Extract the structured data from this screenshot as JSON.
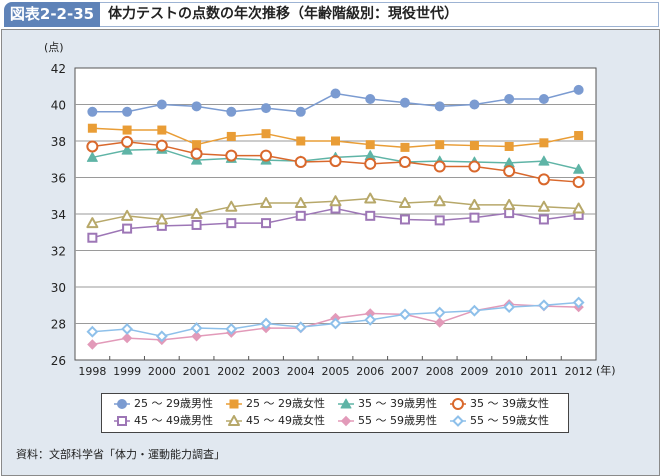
{
  "header": {
    "figure_label": "図表2-2-35",
    "title": "体力テストの点数の年次推移（年齢階級別：現役世代）"
  },
  "source": "資料：文部科学省「体力・運動能力調査」",
  "chart_data": {
    "type": "line",
    "title": "体力テストの点数の年次推移（年齢階級別：現役世代）",
    "xlabel": "(年)",
    "ylabel": "(点)",
    "ylim": [
      26,
      42
    ],
    "yticks": [
      "26",
      "28",
      "30",
      "32",
      "34",
      "36",
      "38",
      "40",
      "42"
    ],
    "ytick_values": [
      26,
      28,
      30,
      32,
      34,
      36,
      38,
      40,
      42
    ],
    "grid": true,
    "legend_position": "bottom",
    "categories": [
      "1998",
      "1999",
      "2000",
      "2001",
      "2002",
      "2003",
      "2004",
      "2005",
      "2006",
      "2007",
      "2008",
      "2009",
      "2010",
      "2011",
      "2012"
    ],
    "series": [
      {
        "name": "25 ～ 29歳男性",
        "color": "#7b9bd1",
        "marker": "circle-filled",
        "values": [
          39.6,
          39.6,
          40.0,
          39.9,
          39.6,
          39.8,
          39.6,
          40.6,
          40.3,
          40.1,
          39.9,
          40.0,
          40.3,
          40.3,
          40.8
        ]
      },
      {
        "name": "25 ～ 29歳女性",
        "color": "#e99d36",
        "marker": "square-filled",
        "values": [
          38.7,
          38.6,
          38.6,
          37.8,
          38.25,
          38.4,
          38.0,
          38.0,
          37.8,
          37.65,
          37.8,
          37.75,
          37.7,
          37.9,
          38.3
        ]
      },
      {
        "name": "35 ～ 39歳男性",
        "color": "#5fb4a6",
        "marker": "triangle-filled",
        "values": [
          37.1,
          37.5,
          37.55,
          36.95,
          37.05,
          36.95,
          36.9,
          37.1,
          37.2,
          36.85,
          36.9,
          36.85,
          36.8,
          36.9,
          36.45
        ]
      },
      {
        "name": "35 ～ 39歳女性",
        "color": "#d9682c",
        "marker": "circle-open",
        "values": [
          37.7,
          37.95,
          37.75,
          37.3,
          37.2,
          37.2,
          36.85,
          36.9,
          36.75,
          36.85,
          36.6,
          36.6,
          36.35,
          35.9,
          35.75
        ]
      },
      {
        "name": "45 ～ 49歳男性",
        "color": "#9d76b6",
        "marker": "square-open",
        "values": [
          32.7,
          33.2,
          33.35,
          33.4,
          33.5,
          33.5,
          33.9,
          34.3,
          33.9,
          33.7,
          33.65,
          33.8,
          34.05,
          33.7,
          33.95
        ]
      },
      {
        "name": "45 ～ 49歳女性",
        "color": "#b7a86a",
        "marker": "triangle-open",
        "values": [
          33.5,
          33.9,
          33.7,
          34.0,
          34.4,
          34.6,
          34.6,
          34.7,
          34.85,
          34.6,
          34.7,
          34.5,
          34.5,
          34.4,
          34.3
        ]
      },
      {
        "name": "55 ～ 59歳男性",
        "color": "#e29ab9",
        "marker": "diamond-filled",
        "values": [
          26.85,
          27.2,
          27.1,
          27.3,
          27.5,
          27.75,
          27.75,
          28.3,
          28.55,
          28.5,
          28.05,
          28.7,
          29.05,
          28.95,
          28.9
        ]
      },
      {
        "name": "55 ～ 59歳女性",
        "color": "#8ec0ea",
        "marker": "diamond-open",
        "values": [
          27.55,
          27.7,
          27.3,
          27.75,
          27.7,
          28.0,
          27.8,
          28.0,
          28.2,
          28.5,
          28.6,
          28.7,
          28.9,
          29.0,
          29.15
        ]
      }
    ]
  }
}
